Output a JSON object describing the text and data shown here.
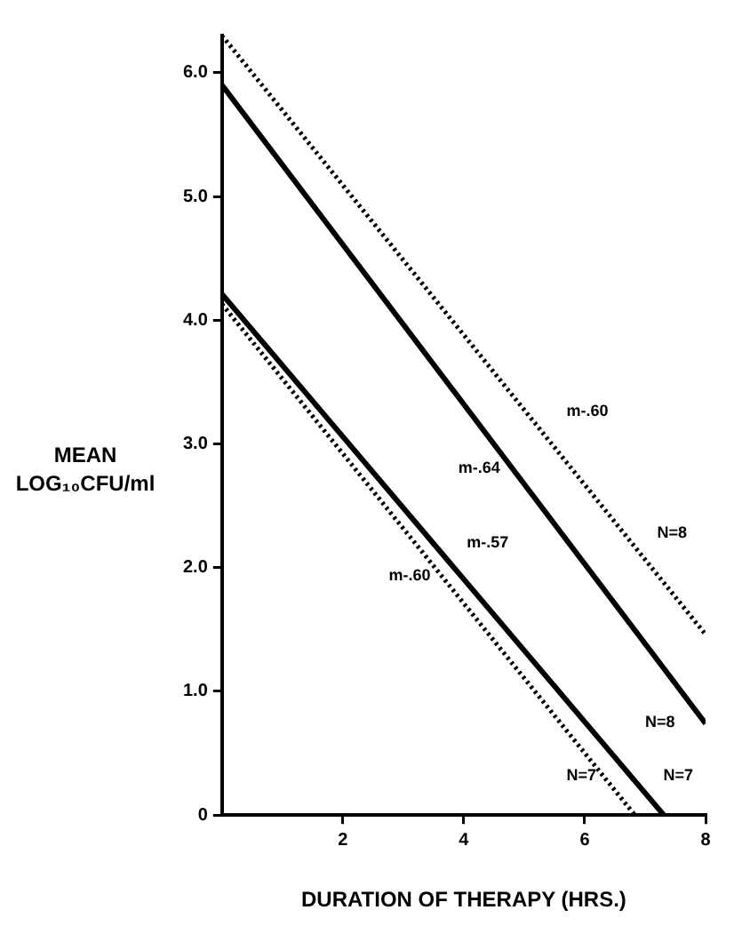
{
  "chart_data": {
    "type": "line",
    "xlabel": "DURATION OF THERAPY (HRS.)",
    "ylabel": "MEAN LOG₁₀CFU/ml",
    "xlim": [
      0,
      8
    ],
    "xticks": [
      2,
      4,
      6,
      8
    ],
    "ylim": [
      0,
      6.3
    ],
    "yticks": [
      0,
      {
        "value": 1,
        "label": "1.0"
      },
      {
        "value": 2,
        "label": "2.0"
      },
      {
        "value": 3,
        "label": "3.0"
      },
      {
        "value": 4,
        "label": "4.0"
      },
      {
        "value": 5,
        "label": "5.0"
      },
      {
        "value": 6,
        "label": "6.0"
      }
    ],
    "grid": false,
    "legend": false,
    "marker": "none",
    "series": [
      {
        "color": "#000000",
        "line_style": "dotted",
        "x": [
          0,
          8
        ],
        "values": [
          6.3,
          1.46
        ]
      },
      {
        "color": "#000000",
        "line_style": "solid",
        "x": [
          0,
          8
        ],
        "values": [
          5.9,
          0.74
        ]
      },
      {
        "color": "#000000",
        "line_style": "solid",
        "x": [
          0,
          7.31
        ],
        "values": [
          4.21,
          0
        ]
      },
      {
        "color": "#000000",
        "line_style": "dotted",
        "x": [
          0,
          6.83
        ],
        "values": [
          4.13,
          0
        ]
      }
    ],
    "annotations": [
      "m-.60",
      "m-.64",
      "m-.57",
      "m-.60",
      "N=8",
      "N=8",
      "N=7",
      "N=7"
    ]
  }
}
